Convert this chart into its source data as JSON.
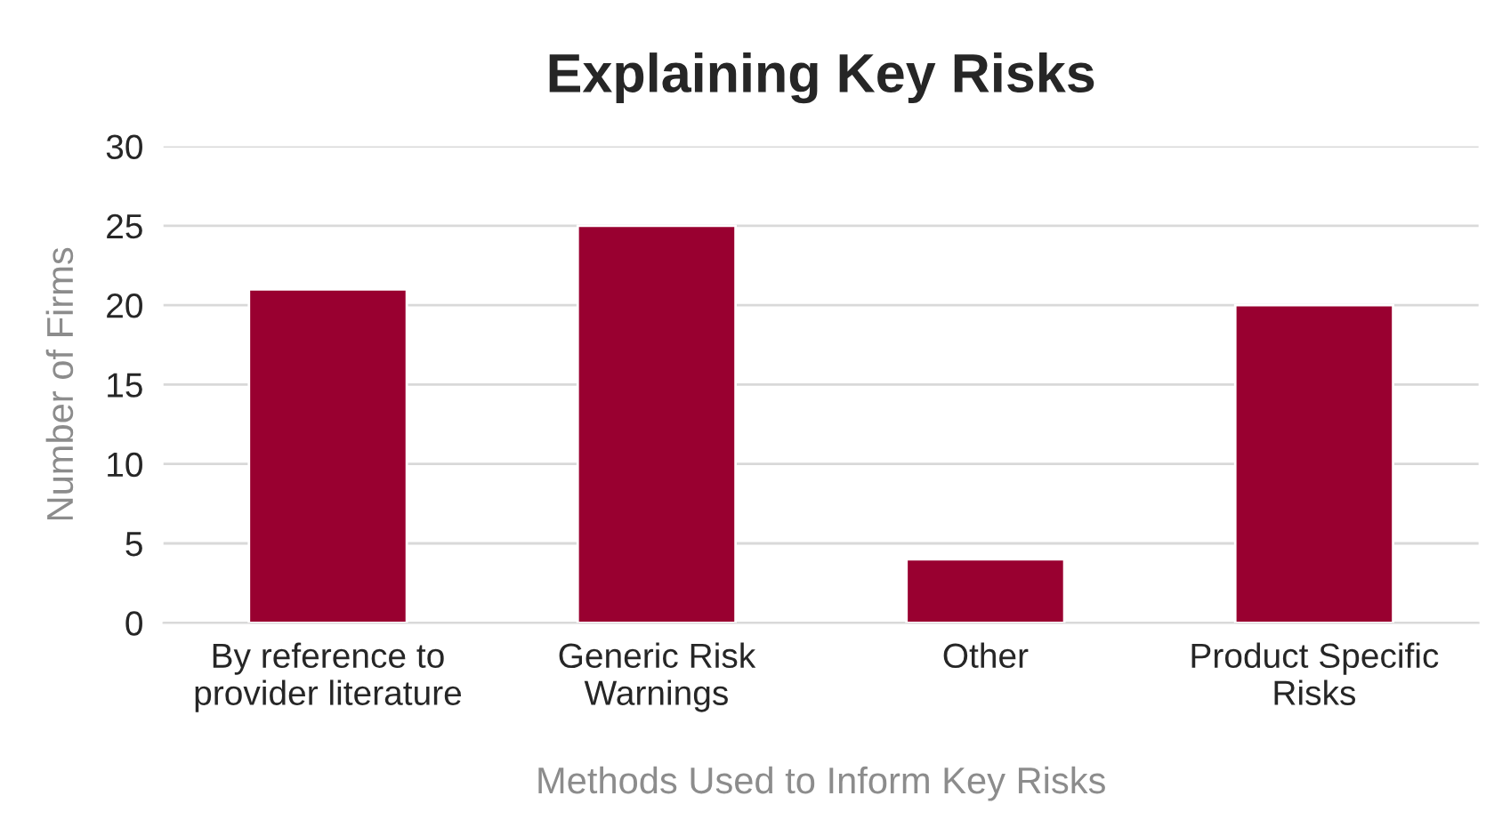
{
  "chart_data": {
    "type": "bar",
    "title": "Explaining Key Risks",
    "xlabel": "Methods Used to Inform Key Risks",
    "ylabel": "Number of Firms",
    "categories": [
      "By reference to\nprovider literature",
      "Generic Risk\nWarnings",
      "Other",
      "Product Specific\nRisks"
    ],
    "values": [
      21,
      25,
      4,
      20
    ],
    "color": "#990030",
    "ylim": [
      0,
      30
    ],
    "yticks": [
      0,
      5,
      10,
      15,
      20,
      25,
      30
    ],
    "grid": "y",
    "legend": false
  }
}
